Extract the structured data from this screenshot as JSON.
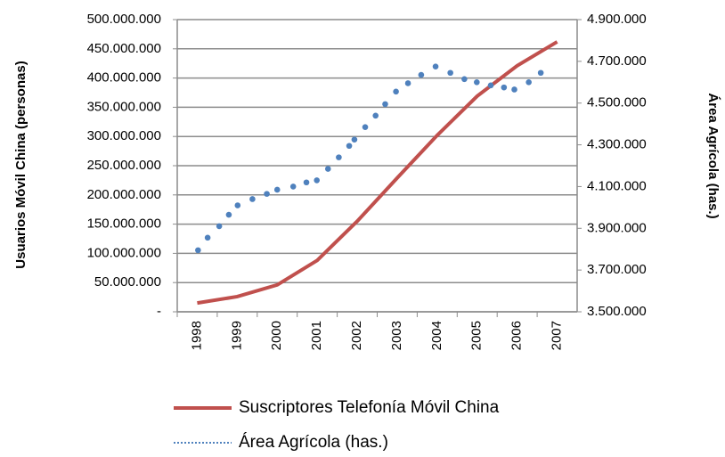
{
  "chart_data": {
    "type": "line",
    "ylabel": "Usuarios Móvil China (personas)",
    "y2label": "Área Agrícola (has.)",
    "categories": [
      "1998",
      "1999",
      "2000",
      "2001",
      "2002",
      "2003",
      "2004",
      "2005",
      "2006",
      "2007"
    ],
    "xlim": [
      1997.5,
      2007.5
    ],
    "ylim": [
      0,
      500000000
    ],
    "yticks": [
      {
        "value": 0,
        "label": "-"
      },
      {
        "value": 50000000,
        "label": "50.000.000"
      },
      {
        "value": 100000000,
        "label": "100.000.000"
      },
      {
        "value": 150000000,
        "label": "150.000.000"
      },
      {
        "value": 200000000,
        "label": "200.000.000"
      },
      {
        "value": 250000000,
        "label": "250.000.000"
      },
      {
        "value": 300000000,
        "label": "300.000.000"
      },
      {
        "value": 350000000,
        "label": "350.000.000"
      },
      {
        "value": 400000000,
        "label": "400.000.000"
      },
      {
        "value": 450000000,
        "label": "450.000.000"
      },
      {
        "value": 500000000,
        "label": "500.000.000"
      }
    ],
    "y2lim": [
      3500000,
      4900000
    ],
    "y2ticks": [
      {
        "value": 3500000,
        "label": "3.500.000"
      },
      {
        "value": 3700000,
        "label": "3.700.000"
      },
      {
        "value": 3900000,
        "label": "3.900.000"
      },
      {
        "value": 4100000,
        "label": "4.100.000"
      },
      {
        "value": 4300000,
        "label": "4.300.000"
      },
      {
        "value": 4500000,
        "label": "4.500.000"
      },
      {
        "value": 4700000,
        "label": "4.700.000"
      },
      {
        "value": 4900000,
        "label": "4.900.000"
      }
    ],
    "grid": true,
    "series": [
      {
        "name": "Suscriptores Telefonía Móvil China",
        "color": "#c0504d",
        "style": "solid",
        "values": [
          15000000,
          26000000,
          46000000,
          88000000,
          155000000,
          229000000,
          302000000,
          369000000,
          421000000,
          462000000
        ]
      },
      {
        "name": "Área Agrícola (has.)",
        "color": "#4f81bd",
        "style": "dotted",
        "axis": "y2",
        "x": [
          1998.02,
          1998.26,
          1998.55,
          1998.79,
          1999.01,
          1999.38,
          1999.74,
          2000.0,
          2000.4,
          2000.73,
          2000.99,
          2001.27,
          2001.54,
          2001.8,
          2001.93,
          2002.2,
          2002.46,
          2002.7,
          2002.97,
          2003.27,
          2003.6,
          2003.96,
          2004.33,
          2004.68,
          2004.99,
          2005.34,
          2005.67,
          2005.93,
          2006.29,
          2006.59
        ],
        "values": [
          3795000,
          3855000,
          3910000,
          3965000,
          4010000,
          4040000,
          4065000,
          4085000,
          4100000,
          4120000,
          4130000,
          4185000,
          4240000,
          4295000,
          4325000,
          4385000,
          4440000,
          4495000,
          4555000,
          4595000,
          4635000,
          4675000,
          4645000,
          4615000,
          4600000,
          4585000,
          4575000,
          4565000,
          4600000,
          4645000
        ]
      }
    ]
  }
}
